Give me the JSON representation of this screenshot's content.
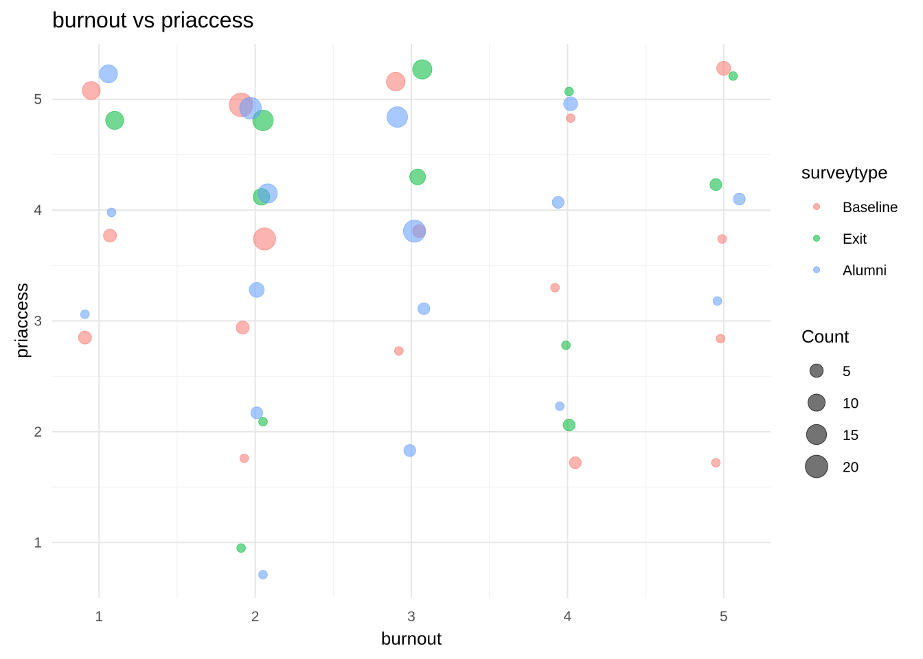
{
  "chart_data": {
    "type": "scatter",
    "title": "burnout vs priaccess",
    "xlabel": "burnout",
    "ylabel": "priaccess",
    "xlim": [
      0.7,
      5.3
    ],
    "ylim": [
      0.5,
      5.5
    ],
    "x_ticks": [
      1,
      2,
      3,
      4,
      5
    ],
    "y_ticks": [
      1,
      2,
      3,
      4,
      5
    ],
    "x_tick_labels": [
      "1",
      "2",
      "3",
      "4",
      "5"
    ],
    "y_tick_labels": [
      "1",
      "2",
      "3",
      "4",
      "5"
    ],
    "grid": true,
    "legend_position": "right",
    "color_legend": {
      "title": "surveytype",
      "entries": [
        {
          "label": "Baseline",
          "color": "#F8766D"
        },
        {
          "label": "Exit",
          "color": "#00BA38"
        },
        {
          "label": "Alumni",
          "color": "#619CFF"
        }
      ]
    },
    "size_legend": {
      "title": "Count",
      "entries": [
        {
          "label": "5",
          "value": 5
        },
        {
          "label": "10",
          "value": 10
        },
        {
          "label": "15",
          "value": 15
        },
        {
          "label": "20",
          "value": 20
        }
      ]
    },
    "point_alpha": 0.55,
    "series": [
      {
        "name": "Baseline",
        "color": "#F8766D",
        "points": [
          {
            "x": 0.95,
            "y": 5.08,
            "count": 10
          },
          {
            "x": 1.07,
            "y": 3.77,
            "count": 4
          },
          {
            "x": 0.91,
            "y": 2.85,
            "count": 4
          },
          {
            "x": 1.91,
            "y": 4.95,
            "count": 20
          },
          {
            "x": 2.06,
            "y": 3.74,
            "count": 17
          },
          {
            "x": 1.92,
            "y": 2.94,
            "count": 4
          },
          {
            "x": 1.93,
            "y": 1.76,
            "count": 1
          },
          {
            "x": 2.9,
            "y": 5.16,
            "count": 11
          },
          {
            "x": 3.05,
            "y": 3.81,
            "count": 4
          },
          {
            "x": 2.92,
            "y": 2.73,
            "count": 1
          },
          {
            "x": 4.02,
            "y": 4.83,
            "count": 1
          },
          {
            "x": 3.92,
            "y": 3.3,
            "count": 1
          },
          {
            "x": 4.05,
            "y": 1.72,
            "count": 3
          },
          {
            "x": 5.0,
            "y": 5.28,
            "count": 5
          },
          {
            "x": 4.99,
            "y": 3.74,
            "count": 1
          },
          {
            "x": 4.98,
            "y": 2.84,
            "count": 1
          },
          {
            "x": 4.95,
            "y": 1.72,
            "count": 1
          }
        ]
      },
      {
        "name": "Exit",
        "color": "#00BA38",
        "points": [
          {
            "x": 1.1,
            "y": 4.81,
            "count": 10
          },
          {
            "x": 2.05,
            "y": 4.81,
            "count": 14
          },
          {
            "x": 2.04,
            "y": 4.12,
            "count": 8
          },
          {
            "x": 2.05,
            "y": 2.09,
            "count": 1
          },
          {
            "x": 1.91,
            "y": 0.95,
            "count": 1
          },
          {
            "x": 3.07,
            "y": 5.27,
            "count": 12
          },
          {
            "x": 3.04,
            "y": 4.3,
            "count": 7
          },
          {
            "x": 4.01,
            "y": 5.07,
            "count": 1
          },
          {
            "x": 3.99,
            "y": 2.78,
            "count": 1
          },
          {
            "x": 4.01,
            "y": 2.06,
            "count": 3
          },
          {
            "x": 5.06,
            "y": 5.21,
            "count": 1
          },
          {
            "x": 4.95,
            "y": 4.23,
            "count": 3
          }
        ]
      },
      {
        "name": "Alumni",
        "color": "#619CFF",
        "points": [
          {
            "x": 1.06,
            "y": 5.23,
            "count": 10
          },
          {
            "x": 1.08,
            "y": 3.98,
            "count": 1
          },
          {
            "x": 0.91,
            "y": 3.06,
            "count": 1
          },
          {
            "x": 1.97,
            "y": 4.92,
            "count": 16
          },
          {
            "x": 2.08,
            "y": 4.15,
            "count": 12
          },
          {
            "x": 2.01,
            "y": 3.28,
            "count": 6
          },
          {
            "x": 2.01,
            "y": 2.17,
            "count": 3
          },
          {
            "x": 2.05,
            "y": 0.71,
            "count": 1
          },
          {
            "x": 2.91,
            "y": 4.84,
            "count": 14
          },
          {
            "x": 3.02,
            "y": 3.81,
            "count": 17
          },
          {
            "x": 3.08,
            "y": 3.11,
            "count": 3
          },
          {
            "x": 2.99,
            "y": 1.83,
            "count": 3
          },
          {
            "x": 4.02,
            "y": 4.96,
            "count": 5
          },
          {
            "x": 3.94,
            "y": 4.07,
            "count": 3
          },
          {
            "x": 3.95,
            "y": 2.23,
            "count": 1
          },
          {
            "x": 5.1,
            "y": 4.1,
            "count": 3
          },
          {
            "x": 4.96,
            "y": 3.18,
            "count": 1
          }
        ]
      }
    ]
  }
}
